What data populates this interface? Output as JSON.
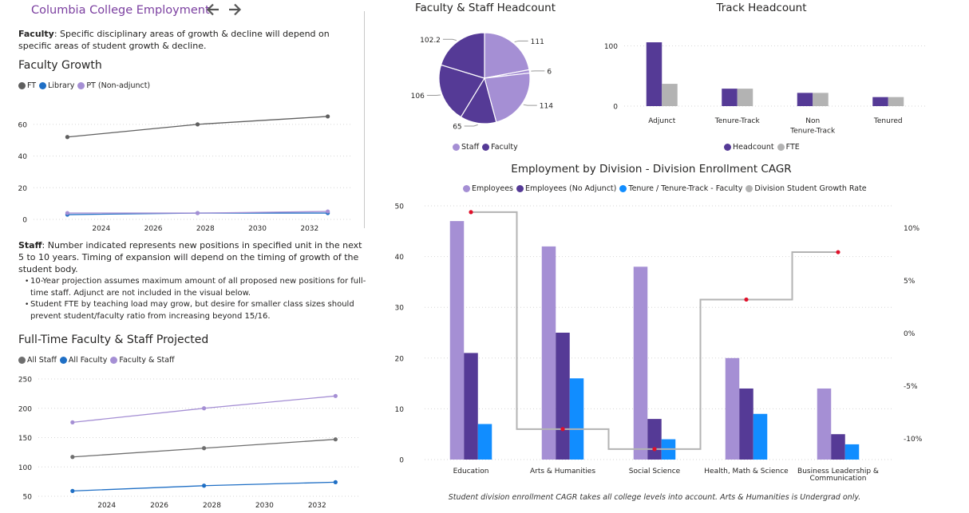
{
  "header": {
    "title": "Columbia College Employment",
    "back_icon": "arrow-left-icon",
    "forward_icon": "arrow-right-icon"
  },
  "faculty_note": {
    "label": "Faculty",
    "text": ": Specific disciplinary areas of growth & decline will depend on specific areas of student growth & decline."
  },
  "staff_note": {
    "label": "Staff",
    "text": ": Number indicated represents new positions in specified unit in the next 5 to 10 years. Timing of expansion will depend on the timing of growth of the student body.",
    "bullets": [
      "10-Year projection assumes maximum amount of all proposed new positions for full-time staff. Adjunct are not included in the visual below.",
      "Student FTE by teaching load may grow, but desire for smaller class sizes should prevent student/faculty ratio from increasing beyond 15/16."
    ]
  },
  "footnote": "Student division enrollment CAGR takes all college levels into account. Arts & Humanities is Undergrad only.",
  "chart_data": [
    {
      "id": "faculty-growth",
      "type": "line",
      "title": "Faculty Growth",
      "xlabel": "",
      "ylabel": "",
      "x": [
        2022.7,
        2027.7,
        2032.7
      ],
      "xticks": [
        "2024",
        "2026",
        "2028",
        "2030",
        "2032"
      ],
      "xtick_values": [
        2024,
        2026,
        2028,
        2030,
        2032
      ],
      "xlim": [
        2021.4,
        2033.6
      ],
      "ylim": [
        0,
        70
      ],
      "yticks": [
        0,
        20,
        40,
        60
      ],
      "grid": true,
      "legend": "top-left",
      "series": [
        {
          "name": "FT",
          "color": "#5F5F5F",
          "values": [
            52,
            60,
            65
          ]
        },
        {
          "name": "Library",
          "color": "#1F6FC5",
          "values": [
            3,
            4,
            4
          ]
        },
        {
          "name": "PT (Non-adjunct)",
          "color": "#A58FD4",
          "values": [
            4,
            4,
            5
          ]
        }
      ]
    },
    {
      "id": "ft-projected",
      "type": "line",
      "title": "Full-Time Faculty & Staff Projected",
      "xlabel": "",
      "ylabel": "",
      "x": [
        2022.7,
        2027.7,
        2032.7
      ],
      "xticks": [
        "2024",
        "2026",
        "2028",
        "2030",
        "2032"
      ],
      "xtick_values": [
        2024,
        2026,
        2028,
        2030,
        2032
      ],
      "xlim": [
        2021.4,
        2033.6
      ],
      "ylim": [
        50,
        250
      ],
      "yticks": [
        50,
        100,
        150,
        200,
        250
      ],
      "grid": true,
      "legend": "top-left",
      "series": [
        {
          "name": "All Staff",
          "color": "#6E6E6E",
          "values": [
            117,
            132,
            147
          ]
        },
        {
          "name": "All Faculty",
          "color": "#1F6FC5",
          "values": [
            59,
            68,
            74
          ]
        },
        {
          "name": "Faculty & Staff",
          "color": "#A58FD4",
          "values": [
            176,
            200,
            221
          ]
        }
      ]
    },
    {
      "id": "headcount-pie",
      "type": "pie",
      "title": "Faculty & Staff Headcount",
      "legend": "bottom",
      "legend_items": [
        {
          "name": "Staff",
          "color": "#A58FD4"
        },
        {
          "name": "Faculty",
          "color": "#553A96"
        }
      ],
      "slices": [
        {
          "label": "111",
          "value": 111,
          "group": "Staff",
          "color": "#A58FD4"
        },
        {
          "label": "6",
          "value": 6,
          "group": "Staff",
          "color": "#A58FD4"
        },
        {
          "label": "114",
          "value": 114,
          "group": "Staff",
          "color": "#A58FD4"
        },
        {
          "label": "65",
          "value": 65,
          "group": "Faculty",
          "color": "#553A96"
        },
        {
          "label": "106",
          "value": 106,
          "group": "Faculty",
          "color": "#553A96"
        },
        {
          "label": "102.2",
          "value": 102.2,
          "group": "Faculty",
          "color": "#553A96"
        }
      ]
    },
    {
      "id": "track-headcount",
      "type": "bar",
      "title": "Track Headcount",
      "categories": [
        "Adjunct",
        "Tenure-Track",
        "Non Tenure-Track",
        "Tenured"
      ],
      "category_lines": [
        [
          "Adjunct"
        ],
        [
          "Tenure-Track"
        ],
        [
          "Non",
          "Tenure-Track"
        ],
        [
          "Tenured"
        ]
      ],
      "ylim": [
        0,
        110
      ],
      "yticks": [
        0,
        100
      ],
      "grid": true,
      "legend": "bottom",
      "series": [
        {
          "name": "Headcount",
          "color": "#553A96",
          "values": [
            106,
            29,
            22,
            15
          ]
        },
        {
          "name": "FTE",
          "color": "#B3B3B3",
          "values": [
            37,
            29,
            22,
            15
          ]
        }
      ]
    },
    {
      "id": "division-employment",
      "type": "bar",
      "title": "Employment by Division - Division Enrollment CAGR",
      "categories": [
        "Education",
        "Arts & Humanities",
        "Social Science",
        "Health, Math & Science",
        "Business Leadership & Communication"
      ],
      "category_lines": [
        [
          "Education"
        ],
        [
          "Arts & Humanities"
        ],
        [
          "Social Science"
        ],
        [
          "Health, Math & Science"
        ],
        [
          "Business Leadership &",
          "Communication"
        ]
      ],
      "ylim": [
        0,
        50
      ],
      "yticks": [
        0,
        10,
        20,
        30,
        40,
        50
      ],
      "y2lim": [
        -12.5,
        12.5
      ],
      "y2ticks": [
        -10,
        -5,
        0,
        5,
        10
      ],
      "y2tick_labels": [
        "-10%",
        "-5%",
        "0%",
        "5%",
        "10%"
      ],
      "grid": true,
      "legend": "top",
      "series": [
        {
          "name": "Employees",
          "color": "#A58FD4",
          "values": [
            47,
            42,
            38,
            20,
            14
          ]
        },
        {
          "name": "Employees (No Adjunct)",
          "color": "#553A96",
          "values": [
            21,
            25,
            8,
            14,
            5
          ]
        },
        {
          "name": "Tenure / Tenure-Track - Faculty",
          "color": "#118DFF",
          "values": [
            7,
            16,
            4,
            9,
            3
          ]
        }
      ],
      "line_series": {
        "name": "Division Student Growth Rate",
        "color": "#B3B3B3",
        "marker_color": "#E0102A",
        "axis": "right",
        "unit": "%",
        "values": [
          11.5,
          -9.1,
          -11.0,
          3.2,
          7.7
        ]
      }
    }
  ]
}
